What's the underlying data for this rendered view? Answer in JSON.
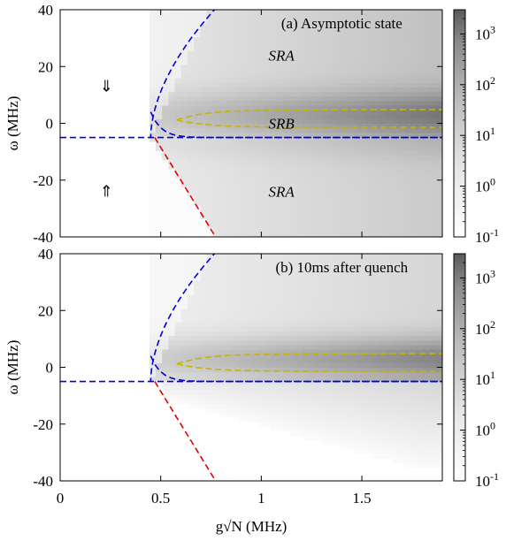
{
  "chart_data": [
    {
      "type": "heatmap",
      "title": "(a) Asymptotic state",
      "xlabel": "g√N (MHz)",
      "ylabel": "ω (MHz)",
      "xlim": [
        0,
        1.9
      ],
      "ylim": [
        -40,
        40
      ],
      "x_ticks": [
        0,
        0.5,
        1,
        1.5
      ],
      "x_tick_labels": [
        "0",
        "0.5",
        "1",
        "1.5"
      ],
      "y_ticks": [
        40,
        20,
        0,
        -20,
        -40
      ],
      "y_tick_labels": [
        "40",
        "20",
        "0",
        "-20",
        "-40"
      ],
      "colorbar": {
        "scale": "log",
        "min": 0.1,
        "max": 3000,
        "ticks": [
          1000,
          100,
          10,
          1,
          0.1
        ],
        "tick_labels": [
          "10",
          "10",
          "10",
          "10",
          "10"
        ],
        "tick_exponents": [
          "3",
          "2",
          "1",
          "0",
          "-1"
        ]
      },
      "regions": [
        {
          "label": "SRA",
          "x": 1.1,
          "y": 24
        },
        {
          "label": "SRB",
          "x": 1.1,
          "y": 0
        },
        {
          "label": "SRA",
          "x": 1.1,
          "y": -24
        }
      ],
      "arrows": [
        {
          "glyph": "⇓",
          "x": 0.23,
          "y": 13
        },
        {
          "glyph": "⇑",
          "x": 0.23,
          "y": -24
        }
      ],
      "lines": {
        "horizontal": {
          "y": -5,
          "color": "#0000e0"
        },
        "blue_branch": {
          "color": "#0000e0",
          "vertex_x": 0.45
        },
        "red_branch": {
          "color": "#e00000"
        },
        "olive_branch": {
          "color": "#c8b400",
          "vertex_x": 0.58
        }
      },
      "intensity_model": "full"
    },
    {
      "type": "heatmap",
      "title": "(b) 10ms after quench",
      "xlabel": "g√N (MHz)",
      "ylabel": "ω (MHz)",
      "xlim": [
        0,
        1.9
      ],
      "ylim": [
        -40,
        40
      ],
      "x_ticks": [
        0,
        0.5,
        1,
        1.5
      ],
      "x_tick_labels": [
        "0",
        "0.5",
        "1",
        "1.5"
      ],
      "y_ticks": [
        40,
        20,
        0,
        -20,
        -40
      ],
      "y_tick_labels": [
        "40",
        "20",
        "0",
        "-20",
        "-40"
      ],
      "colorbar": {
        "scale": "log",
        "min": 0.1,
        "max": 3000,
        "ticks": [
          1000,
          100,
          10,
          1,
          0.1
        ],
        "tick_labels": [
          "10",
          "10",
          "10",
          "10",
          "10"
        ],
        "tick_exponents": [
          "3",
          "2",
          "1",
          "0",
          "-1"
        ]
      },
      "lines": {
        "horizontal": {
          "y": -5,
          "color": "#0000e0"
        },
        "blue_branch": {
          "color": "#0000e0",
          "vertex_x": 0.45
        },
        "red_branch": {
          "color": "#e00000"
        },
        "olive_branch": {
          "color": "#c8b400",
          "vertex_x": 0.58
        }
      },
      "intensity_model": "upper_only"
    }
  ]
}
